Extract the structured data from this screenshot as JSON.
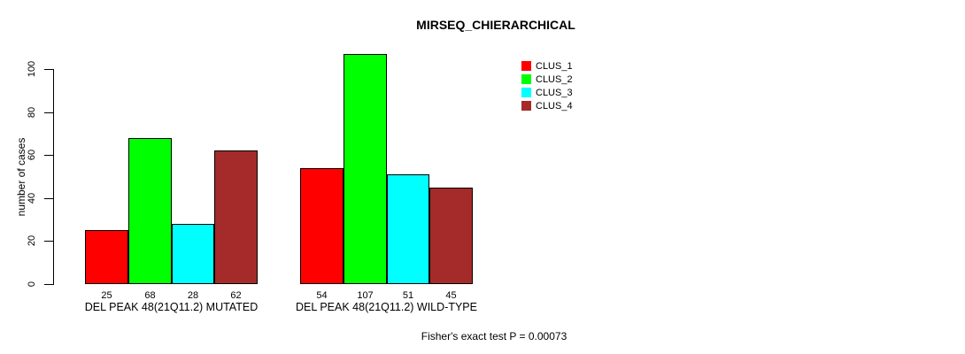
{
  "title": "MIRSEQ_CHIERARCHICAL",
  "y_axis": {
    "label": "number of cases"
  },
  "footnote": "Fisher's exact test P = 0.00073",
  "chart_data": {
    "type": "bar",
    "title": "MIRSEQ_CHIERARCHICAL",
    "xlabel": "",
    "ylabel": "number of cases",
    "ylim": [
      0,
      107
    ],
    "yticks": [
      0,
      20,
      40,
      60,
      80,
      100
    ],
    "grid": false,
    "legend_position": "top-right",
    "categories": [
      "DEL PEAK 48(21Q11.2) MUTATED",
      "DEL PEAK 48(21Q11.2) WILD-TYPE"
    ],
    "series": [
      {
        "name": "CLUS_1",
        "color": "#ff0000",
        "values": [
          25,
          54
        ]
      },
      {
        "name": "CLUS_2",
        "color": "#00ff00",
        "values": [
          68,
          107
        ]
      },
      {
        "name": "CLUS_3",
        "color": "#00ffff",
        "values": [
          28,
          51
        ]
      },
      {
        "name": "CLUS_4",
        "color": "#a52a2a",
        "values": [
          62,
          45
        ]
      }
    ],
    "bar_value_labels": [
      [
        25,
        68,
        28,
        62
      ],
      [
        54,
        107,
        51,
        45
      ]
    ],
    "annotation": "Fisher's exact test P = 0.00073"
  }
}
